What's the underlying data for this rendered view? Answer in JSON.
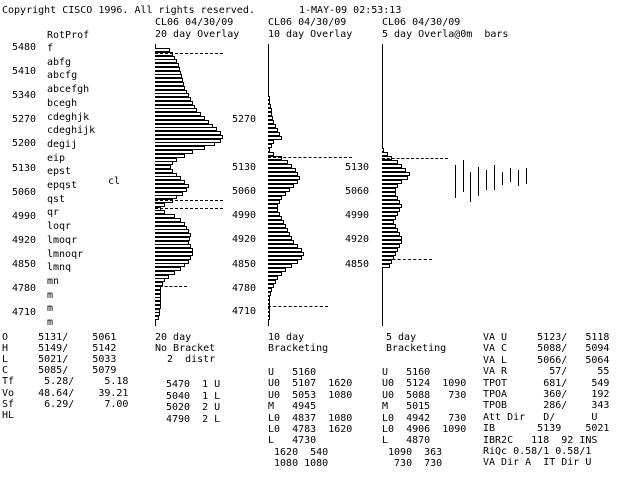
{
  "header": {
    "copyright": "Copyright CISCO 1996. All rights reserved.",
    "datetime": "1-MAY-09 02:53:13"
  },
  "panel1": {
    "title": "RotProf",
    "prices": [
      "5480",
      "5410",
      "5340",
      "5270",
      "5200",
      "5130",
      "5060",
      "4990",
      "4920",
      "4850",
      "4780",
      "4710"
    ],
    "letters": [
      "f",
      "abfg",
      "abcfg",
      "abcefgh",
      "bcegh",
      "cdeghjk",
      "cdeghijk",
      "degij",
      "eip",
      "epst",
      "epqst",
      "qst",
      "qr",
      "loqr",
      "lmoqr",
      "lmnoqr",
      "lmnq",
      "mn",
      "m",
      "m",
      "m"
    ],
    "marker": "cl"
  },
  "panel2": {
    "line1": "CL06 04/30/09",
    "line2": "20 day Overlay",
    "prices": [
      "5270",
      "5130",
      "5060",
      "4990",
      "4920",
      "4850",
      "4780",
      "4710"
    ],
    "footer": [
      "20 day",
      "No Bracket",
      "  2  distr"
    ]
  },
  "panel3": {
    "line1": "CL06 04/30/09",
    "line2": "10 day Overlay",
    "prices": [
      "5130",
      "5060",
      "4990",
      "4920",
      "4850"
    ],
    "footer": [
      "10 day",
      "Bracketing"
    ]
  },
  "panel4": {
    "line1": "CL06 04/30/09",
    "line2": "5 day Overla@0m  bars",
    "footer": [
      "5 day",
      "Bracketing"
    ]
  },
  "stats_left": [
    "O     5131/    5061",
    "H     5149/    5142",
    "L     5021/    5033",
    "C     5085/    5079",
    "Tf     5.28/     5.18",
    "Vo    48.64/    39.21",
    "Sf     6.29/     7.00",
    "HL"
  ],
  "stats_20day": [
    "5470  1 U",
    "5040  1 L",
    "5020  2 U",
    "4790  2 L"
  ],
  "stats_10day": [
    "U   5160",
    "U0  5107  1620",
    "U0  5053  1080",
    "M   4945",
    "L0  4837  1080",
    "L0  4783  1620",
    "L   4730",
    " 1620  540",
    " 1080 1080"
  ],
  "stats_5day": [
    "U   5160",
    "U0  5124  1090",
    "U0  5088   730",
    "M   5015",
    "L0  4942   730",
    "L0  4906  1090",
    "L   4870",
    " 1090  363",
    "  730  730"
  ],
  "stats_right": [
    "VA U     5123/   5118",
    "VA C     5088/   5094",
    "VA L     5066/   5064",
    "VA R       57/     55",
    "TPOT      681/    549",
    "TPOA      360/    192",
    "TPOB      286/    343",
    "Att Dir   D/      U",
    "IB       5139    5021",
    "IBR2C   118  92 INS",
    "RiQc 0.58/1 0.58/1",
    "VA Dir A  IT Dir U"
  ]
}
